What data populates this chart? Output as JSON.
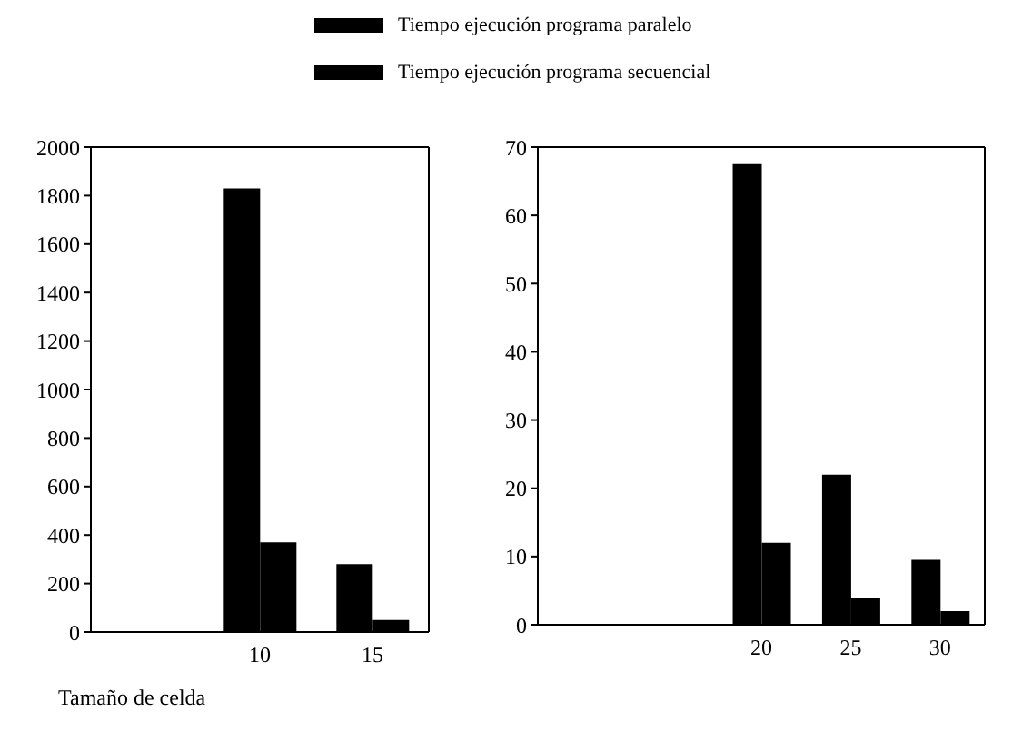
{
  "chart_data": [
    {
      "type": "bar",
      "xlabel": "Tamaño de celda",
      "categories": [
        null,
        "10",
        "15"
      ],
      "series": [
        {
          "name": "Tiempo ejecución programa paralelo",
          "color": "#000000",
          "values": [
            null,
            1830,
            280
          ]
        },
        {
          "name": "Tiempo ejecución programa secuencial",
          "color": "#000000",
          "values": [
            null,
            370,
            50
          ]
        }
      ],
      "ylim": [
        0,
        2000
      ],
      "yticks": [
        0,
        200,
        400,
        600,
        800,
        1000,
        1200,
        1400,
        1600,
        1800,
        2000
      ],
      "legend": "top",
      "grid": false
    },
    {
      "type": "bar",
      "categories": [
        null,
        null,
        "20",
        "25",
        "30"
      ],
      "series": [
        {
          "color": "#000000",
          "values": [
            null,
            null,
            67.5,
            22,
            9.5
          ]
        },
        {
          "color": "#000000",
          "values": [
            null,
            null,
            12,
            4,
            2
          ]
        }
      ],
      "ylim": [
        0,
        70
      ],
      "yticks": [
        0,
        10,
        20,
        30,
        40,
        50,
        60,
        70
      ],
      "grid": false
    }
  ]
}
